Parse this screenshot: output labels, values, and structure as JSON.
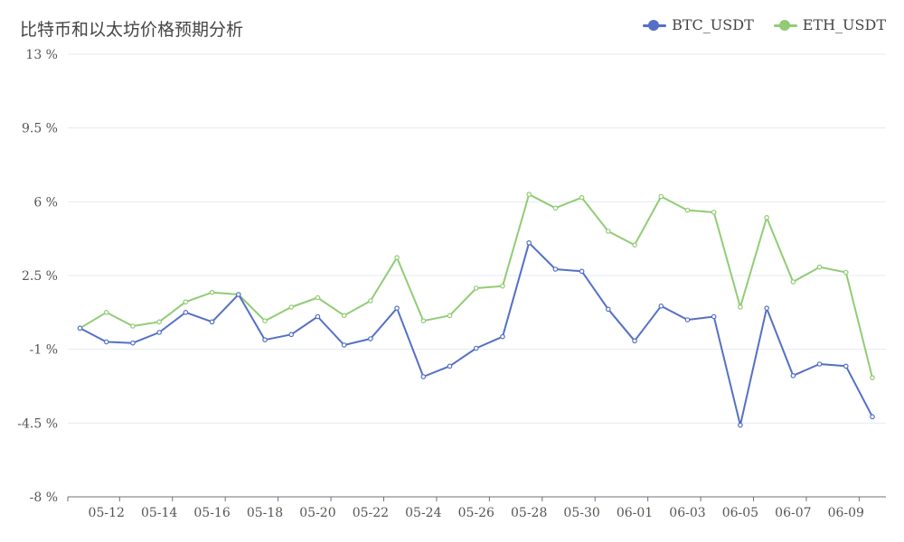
{
  "chart_data": {
    "type": "line",
    "title": "比特币和以太坊价格预期分析",
    "y_ticks": [
      "-8 %",
      "-4.5 %",
      "-1 %",
      "2.5 %",
      "6 %",
      "9.5 %",
      "13 %"
    ],
    "ylim": [
      -8,
      13
    ],
    "x_ticks": [
      "05-12",
      "05-14",
      "05-16",
      "05-18",
      "05-20",
      "05-22",
      "05-24",
      "05-26",
      "05-28",
      "05-30",
      "06-01",
      "06-03",
      "06-05",
      "06-07",
      "06-09"
    ],
    "x": [
      "05-11",
      "05-12",
      "05-13",
      "05-14",
      "05-15",
      "05-16",
      "05-17",
      "05-18",
      "05-19",
      "05-20",
      "05-21",
      "05-22",
      "05-23",
      "05-24",
      "05-25",
      "05-26",
      "05-27",
      "05-28",
      "05-29",
      "05-30",
      "05-31",
      "06-01",
      "06-02",
      "06-03",
      "06-04",
      "06-05",
      "06-06",
      "06-07",
      "06-08",
      "06-09",
      "06-10"
    ],
    "series": [
      {
        "name": "BTC_USDT",
        "color": "#5470c6",
        "values": [
          0.0,
          -0.65,
          -0.7,
          -0.2,
          0.75,
          0.3,
          1.6,
          -0.55,
          -0.3,
          0.55,
          -0.8,
          -0.5,
          0.95,
          -2.3,
          -1.8,
          -0.95,
          -0.4,
          4.05,
          2.8,
          2.7,
          0.9,
          -0.6,
          1.05,
          0.4,
          0.55,
          -4.6,
          0.95,
          -2.25,
          -1.7,
          -1.8,
          -4.2
        ]
      },
      {
        "name": "ETH_USDT",
        "color": "#91cc75",
        "values": [
          0.0,
          0.75,
          0.1,
          0.3,
          1.25,
          1.7,
          1.6,
          0.35,
          1.0,
          1.45,
          0.6,
          1.3,
          3.35,
          0.35,
          0.6,
          1.9,
          2.0,
          6.35,
          5.7,
          6.2,
          4.6,
          3.95,
          6.25,
          5.6,
          5.5,
          1.0,
          5.25,
          2.2,
          2.9,
          2.65,
          -2.35
        ]
      }
    ]
  }
}
